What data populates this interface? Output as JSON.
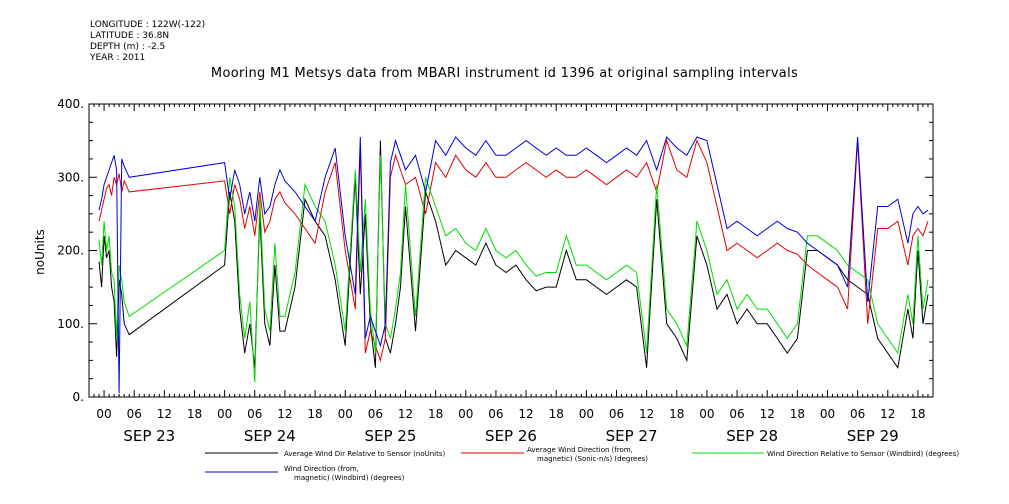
{
  "meta": {
    "longitude": "LONGITUDE : 122W(-122)",
    "latitude": "LATITUDE : 36.8N",
    "depth": "DEPTH (m) : -2.5",
    "year": "YEAR : 2011"
  },
  "chart_data": {
    "type": "line",
    "title": "Mooring M1 Metsys data from MBARI instrument id 1396 at original sampling intervals",
    "ylabel": "noUnits",
    "ylim": [
      0,
      400
    ],
    "yticks": [
      0,
      100,
      200,
      300,
      400
    ],
    "ytick_labels": [
      "0.",
      "100.",
      "200.",
      "300.",
      "400."
    ],
    "xlim_hours": [
      -3,
      165
    ],
    "hour_tick_labels": [
      "00",
      "06",
      "12",
      "18",
      "00",
      "06",
      "12",
      "18",
      "00",
      "06",
      "12",
      "18",
      "00",
      "06",
      "12",
      "18",
      "00",
      "06",
      "12",
      "18",
      "00",
      "06",
      "12",
      "18",
      "00",
      "06",
      "12",
      "18"
    ],
    "day_labels": [
      "SEP 23",
      "SEP 24",
      "SEP 25",
      "SEP 26",
      "SEP 27",
      "SEP 28",
      "SEP 29"
    ],
    "series": [
      {
        "name": "Average Wind Dir Relative to Sensor (noUnits)",
        "color": "#000000",
        "x": [
          -1,
          -0.5,
          0,
          0.5,
          1,
          1.5,
          2,
          2.5,
          3,
          3.5,
          4,
          5,
          24,
          25,
          26,
          27,
          28,
          29,
          30,
          31,
          32,
          33,
          34,
          35,
          36,
          38,
          40,
          42,
          44,
          46,
          48,
          50,
          51,
          52,
          53,
          54,
          55,
          56,
          57,
          58,
          59,
          60,
          62,
          64,
          66,
          68,
          70,
          72,
          74,
          76,
          78,
          80,
          82,
          84,
          86,
          88,
          90,
          92,
          94,
          96,
          98,
          100,
          102,
          104,
          106,
          108,
          110,
          112,
          114,
          116,
          118,
          120,
          122,
          124,
          126,
          128,
          130,
          132,
          134,
          136,
          138,
          140,
          142,
          144,
          146,
          148,
          150,
          152,
          154,
          156,
          158,
          160,
          161,
          162,
          163,
          164
        ],
        "y": [
          185,
          150,
          220,
          190,
          200,
          150,
          130,
          55,
          160,
          140,
          100,
          85,
          180,
          280,
          240,
          120,
          60,
          100,
          40,
          250,
          100,
          70,
          180,
          90,
          90,
          150,
          270,
          240,
          220,
          160,
          70,
          300,
          140,
          250,
          100,
          40,
          350,
          80,
          60,
          100,
          150,
          260,
          90,
          280,
          240,
          180,
          200,
          190,
          180,
          210,
          180,
          170,
          180,
          160,
          145,
          150,
          150,
          200,
          160,
          160,
          150,
          140,
          150,
          160,
          150,
          40,
          270,
          100,
          80,
          50,
          220,
          180,
          120,
          140,
          100,
          120,
          100,
          100,
          80,
          60,
          80,
          200,
          200,
          190,
          180,
          160,
          150,
          140,
          80,
          60,
          40,
          120,
          80,
          200,
          100,
          140
        ]
      },
      {
        "name": "Average Wind Direction (from, magnetic) (Sonic-n/s) (degrees)",
        "color": "#e00000",
        "x": [
          -1,
          -0.5,
          0,
          0.5,
          1,
          1.5,
          2,
          2.5,
          3,
          3.5,
          4,
          5,
          24,
          25,
          26,
          27,
          28,
          29,
          30,
          31,
          32,
          33,
          34,
          35,
          36,
          38,
          40,
          42,
          44,
          46,
          48,
          50,
          51,
          52,
          53,
          54,
          55,
          56,
          57,
          58,
          59,
          60,
          62,
          64,
          66,
          68,
          70,
          72,
          74,
          76,
          78,
          80,
          82,
          84,
          86,
          88,
          90,
          92,
          94,
          96,
          98,
          100,
          102,
          104,
          106,
          108,
          110,
          112,
          114,
          116,
          118,
          120,
          122,
          124,
          126,
          128,
          130,
          132,
          134,
          136,
          138,
          140,
          142,
          144,
          146,
          148,
          150,
          152,
          154,
          156,
          158,
          160,
          161,
          162,
          163,
          164
        ],
        "y": [
          240,
          255,
          270,
          285,
          290,
          275,
          300,
          290,
          305,
          280,
          295,
          280,
          295,
          250,
          290,
          270,
          230,
          260,
          220,
          280,
          225,
          240,
          270,
          280,
          265,
          250,
          230,
          210,
          280,
          320,
          200,
          120,
          340,
          60,
          90,
          70,
          50,
          80,
          300,
          330,
          310,
          290,
          300,
          250,
          320,
          300,
          330,
          310,
          300,
          320,
          300,
          300,
          310,
          320,
          310,
          300,
          310,
          300,
          300,
          310,
          300,
          290,
          300,
          310,
          300,
          320,
          280,
          350,
          310,
          300,
          350,
          320,
          260,
          200,
          210,
          200,
          190,
          200,
          210,
          200,
          195,
          180,
          170,
          160,
          150,
          120,
          350,
          100,
          230,
          230,
          240,
          180,
          220,
          230,
          220,
          240
        ]
      },
      {
        "name": "Wind Direction Relative to Sensor (Windbird) (degrees)",
        "color": "#00dd00",
        "x": [
          -1,
          -0.5,
          0,
          0.5,
          1,
          1.5,
          2,
          2.5,
          3,
          3.5,
          4,
          5,
          24,
          25,
          26,
          27,
          28,
          29,
          30,
          31,
          32,
          33,
          34,
          35,
          36,
          38,
          40,
          42,
          44,
          46,
          48,
          50,
          51,
          52,
          53,
          54,
          55,
          56,
          57,
          58,
          59,
          60,
          62,
          64,
          66,
          68,
          70,
          72,
          74,
          76,
          78,
          80,
          82,
          84,
          86,
          88,
          90,
          92,
          94,
          96,
          98,
          100,
          102,
          104,
          106,
          108,
          110,
          112,
          114,
          116,
          118,
          120,
          122,
          124,
          126,
          128,
          130,
          132,
          134,
          136,
          138,
          140,
          142,
          144,
          146,
          148,
          150,
          152,
          154,
          156,
          158,
          160,
          161,
          162,
          163,
          164
        ],
        "y": [
          215,
          180,
          240,
          200,
          220,
          170,
          160,
          80,
          180,
          160,
          130,
          110,
          200,
          300,
          260,
          140,
          80,
          130,
          20,
          270,
          120,
          90,
          210,
          110,
          110,
          170,
          290,
          260,
          240,
          180,
          90,
          310,
          170,
          270,
          120,
          60,
          330,
          100,
          80,
          120,
          170,
          290,
          110,
          300,
          260,
          220,
          230,
          210,
          200,
          230,
          200,
          190,
          200,
          180,
          165,
          170,
          170,
          220,
          180,
          180,
          170,
          160,
          170,
          180,
          170,
          60,
          290,
          120,
          100,
          70,
          240,
          200,
          140,
          160,
          120,
          140,
          120,
          120,
          100,
          80,
          100,
          220,
          220,
          210,
          200,
          180,
          170,
          160,
          100,
          80,
          60,
          140,
          100,
          220,
          120,
          160
        ]
      },
      {
        "name": "Wind Direction (from, magnetic) (Windbird) (degrees)",
        "color": "#0000dd",
        "x": [
          -1,
          -0.5,
          0,
          0.5,
          1,
          1.5,
          2,
          2.5,
          3,
          3.5,
          4,
          5,
          24,
          25,
          26,
          27,
          28,
          29,
          30,
          31,
          32,
          33,
          34,
          35,
          36,
          38,
          40,
          42,
          44,
          46,
          48,
          50,
          51,
          52,
          53,
          54,
          55,
          56,
          57,
          58,
          59,
          60,
          62,
          64,
          66,
          68,
          70,
          72,
          74,
          76,
          78,
          80,
          82,
          84,
          86,
          88,
          90,
          92,
          94,
          96,
          98,
          100,
          102,
          104,
          106,
          108,
          110,
          112,
          114,
          116,
          118,
          120,
          122,
          124,
          126,
          128,
          130,
          132,
          134,
          136,
          138,
          140,
          142,
          144,
          146,
          148,
          150,
          152,
          154,
          156,
          158,
          160,
          161,
          162,
          163,
          164
        ],
        "y": [
          255,
          270,
          290,
          300,
          310,
          320,
          330,
          310,
          5,
          325,
          315,
          300,
          320,
          270,
          310,
          290,
          250,
          280,
          240,
          300,
          250,
          260,
          290,
          310,
          295,
          280,
          260,
          240,
          300,
          340,
          220,
          140,
          355,
          80,
          110,
          90,
          70,
          100,
          320,
          350,
          330,
          310,
          330,
          280,
          350,
          330,
          355,
          340,
          330,
          350,
          330,
          330,
          340,
          350,
          340,
          330,
          340,
          330,
          330,
          340,
          330,
          320,
          330,
          340,
          330,
          350,
          310,
          355,
          340,
          330,
          355,
          350,
          290,
          230,
          240,
          230,
          220,
          230,
          240,
          230,
          225,
          210,
          200,
          190,
          180,
          150,
          355,
          130,
          260,
          260,
          270,
          210,
          250,
          260,
          250,
          255
        ]
      }
    ]
  }
}
